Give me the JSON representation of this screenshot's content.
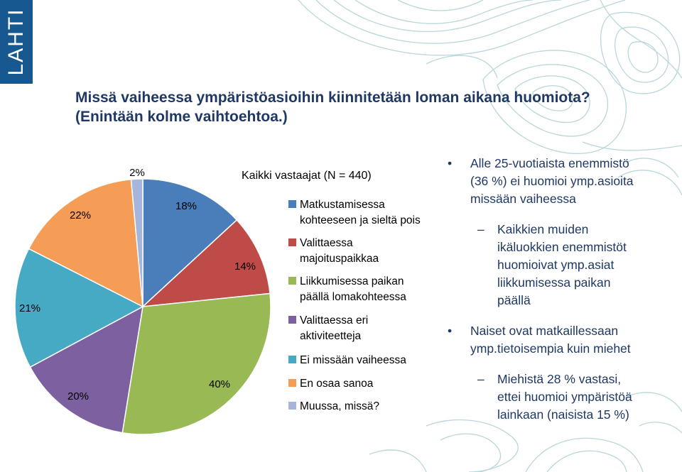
{
  "logo": {
    "text": "LAHTI"
  },
  "title": {
    "line1": "Missä vaiheessa ympäristöasioihin kiinnitetään loman aikana huomiota?",
    "line2": "(Enintään kolme vaihtoehtoa.)"
  },
  "chart_data": {
    "type": "pie",
    "title": "Kaikki vastaajat (N = 440)",
    "legend_position": "right",
    "slices": [
      {
        "label": "Matkustamisessa kohteeseen ja sieltä pois",
        "value": 18,
        "display": "18%",
        "color": "#4a7ebb"
      },
      {
        "label": "Valittaessa majoituspaikkaa",
        "value": 14,
        "display": "14%",
        "color": "#be4b48"
      },
      {
        "label": "Liikkumisessa paikan päällä lomakohteessa",
        "value": 40,
        "display": "40%",
        "color": "#98b954"
      },
      {
        "label": "Valittaessa eri aktiviteetteja",
        "value": 20,
        "display": "20%",
        "color": "#7d60a0"
      },
      {
        "label": "Ei missään vaiheessa",
        "value": 21,
        "display": "21%",
        "color": "#46aac4"
      },
      {
        "label": "En osaa sanoa",
        "value": 22,
        "display": "22%",
        "color": "#f59d56"
      },
      {
        "label": "Muussa, missä?",
        "value": 2,
        "display": "2%",
        "color": "#a5b6da"
      }
    ]
  },
  "legend": {
    "lines": [
      [
        "Matkustamisessa",
        "kohteeseen ja sieltä pois"
      ],
      [
        "Valittaessa",
        "majoituspaikkaa"
      ],
      [
        "Liikkumisessa paikan",
        "päällä lomakohteessa"
      ],
      [
        "Valittaessa eri",
        "aktiviteetteja"
      ],
      [
        "Ei missään vaiheessa"
      ],
      [
        "En osaa sanoa"
      ],
      [
        "Muussa, missä?"
      ]
    ]
  },
  "bullets": {
    "b1": {
      "mark": "•",
      "lines": [
        "Alle 25-vuotiaista enemmistö",
        "(36 %) ei huomioi ymp.asioita",
        "missään vaiheessa"
      ]
    },
    "s1": {
      "mark": "–",
      "lines": [
        "Kaikkien muiden",
        "ikäluokkien enemmistöt",
        "huomioivat ymp.asiat",
        "liikkumisessa paikan",
        "päällä"
      ]
    },
    "b2": {
      "mark": "•",
      "lines": [
        "Naiset ovat matkaillessaan",
        "ymp.tietoisempia kuin miehet"
      ]
    },
    "s2": {
      "mark": "–",
      "lines": [
        "Miehistä 28 % vastasi,",
        "ettei huomioi ympäristöä",
        "lainkaan (naisista 15 %)"
      ]
    }
  }
}
